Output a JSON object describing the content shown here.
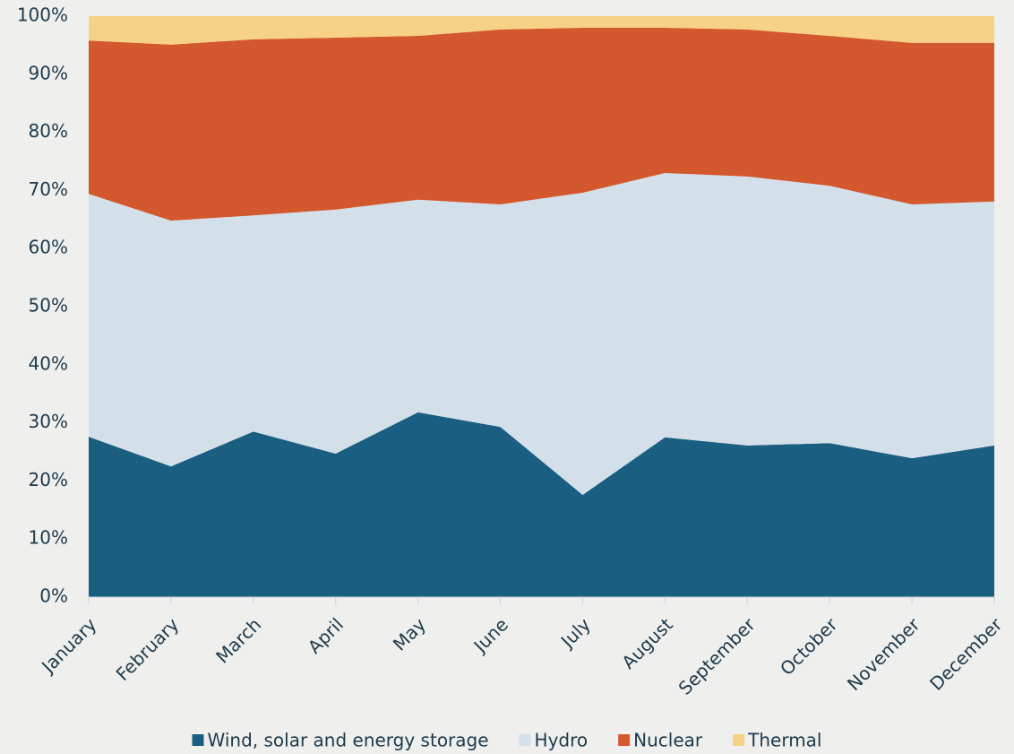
{
  "chart_data": {
    "type": "stacked_area",
    "categories": [
      "January",
      "February",
      "March",
      "April",
      "May",
      "June",
      "July",
      "August",
      "September",
      "October",
      "November",
      "December"
    ],
    "series": [
      {
        "name": "Wind, solar and energy storage",
        "color": "#1a5f82",
        "values": [
          27.6,
          22.5,
          28.5,
          24.7,
          31.8,
          29.3,
          17.6,
          27.5,
          26.1,
          26.5,
          23.9,
          26.1
        ]
      },
      {
        "name": "Hydro",
        "color": "#d3e0ea",
        "values": [
          41.8,
          42.3,
          37.2,
          42.0,
          36.6,
          38.3,
          52.0,
          45.5,
          46.3,
          44.3,
          43.7,
          42.0
        ]
      },
      {
        "name": "Nuclear",
        "color": "#d4582e",
        "values": [
          26.4,
          30.3,
          30.3,
          29.6,
          28.2,
          30.1,
          28.4,
          25.0,
          25.3,
          25.8,
          27.8,
          27.3
        ]
      },
      {
        "name": "Thermal",
        "color": "#f7d185",
        "values": [
          4.2,
          4.9,
          4.0,
          3.7,
          3.4,
          2.3,
          2.0,
          2.0,
          2.3,
          3.4,
          4.6,
          4.6
        ]
      }
    ],
    "ylim": [
      0,
      100
    ],
    "yticks": [
      {
        "value": 0,
        "label": "0%"
      },
      {
        "value": 10,
        "label": "10%"
      },
      {
        "value": 20,
        "label": "20%"
      },
      {
        "value": 30,
        "label": "30%"
      },
      {
        "value": 40,
        "label": "40%"
      },
      {
        "value": 50,
        "label": "50%"
      },
      {
        "value": 60,
        "label": "60%"
      },
      {
        "value": 70,
        "label": "70%"
      },
      {
        "value": 80,
        "label": "80%"
      },
      {
        "value": 90,
        "label": "90%"
      },
      {
        "value": 100,
        "label": "100%"
      }
    ],
    "legend": "bottom"
  }
}
